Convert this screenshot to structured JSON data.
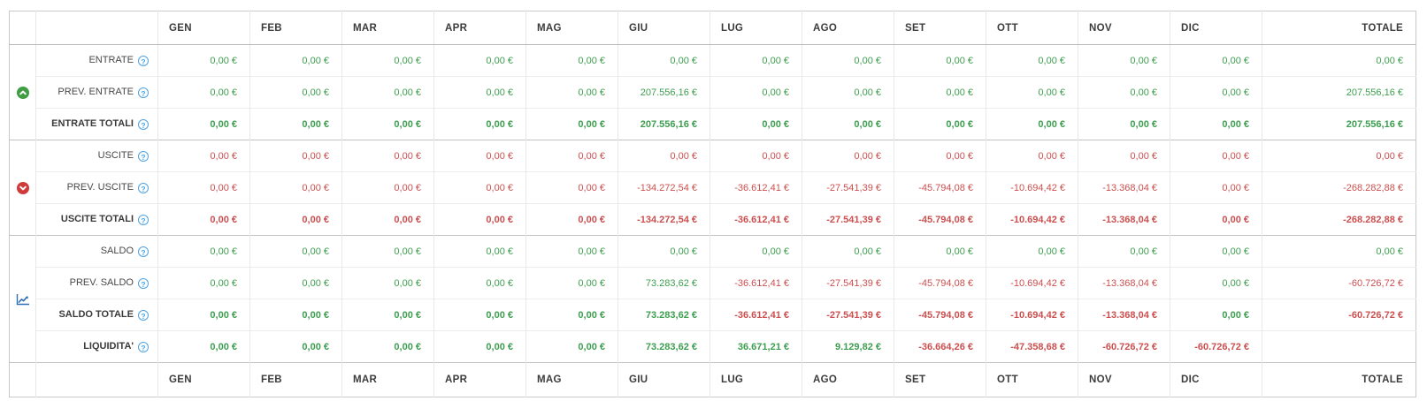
{
  "palette": {
    "positive": "#3d9e4f",
    "negative": "#cc4f4f",
    "help_blue": "#4aa3e8",
    "group_up_green": "#3f9e43",
    "group_down_red": "#cf3b3b",
    "chart_blue": "#2c6fb3"
  },
  "header": {
    "months": [
      "GEN",
      "FEB",
      "MAR",
      "APR",
      "MAG",
      "GIU",
      "LUG",
      "AGO",
      "SET",
      "OTT",
      "NOV",
      "DIC"
    ],
    "total": "TOTALE"
  },
  "footer": {
    "months": [
      "GEN",
      "FEB",
      "MAR",
      "APR",
      "MAG",
      "GIU",
      "LUG",
      "AGO",
      "SET",
      "OTT",
      "NOV",
      "DIC"
    ],
    "total": "TOTALE"
  },
  "help_glyph": "?",
  "groups": [
    {
      "name": "entrate",
      "icon": "arrow-up-circle-icon",
      "rows": [
        {
          "label": "ENTRATE",
          "bold": false,
          "values": [
            {
              "t": "0,00 €",
              "s": "pos"
            },
            {
              "t": "0,00 €",
              "s": "pos"
            },
            {
              "t": "0,00 €",
              "s": "pos"
            },
            {
              "t": "0,00 €",
              "s": "pos"
            },
            {
              "t": "0,00 €",
              "s": "pos"
            },
            {
              "t": "0,00 €",
              "s": "pos"
            },
            {
              "t": "0,00 €",
              "s": "pos"
            },
            {
              "t": "0,00 €",
              "s": "pos"
            },
            {
              "t": "0,00 €",
              "s": "pos"
            },
            {
              "t": "0,00 €",
              "s": "pos"
            },
            {
              "t": "0,00 €",
              "s": "pos"
            },
            {
              "t": "0,00 €",
              "s": "pos"
            },
            {
              "t": "0,00 €",
              "s": "pos"
            }
          ]
        },
        {
          "label": "PREV. ENTRATE",
          "bold": false,
          "values": [
            {
              "t": "0,00 €",
              "s": "pos"
            },
            {
              "t": "0,00 €",
              "s": "pos"
            },
            {
              "t": "0,00 €",
              "s": "pos"
            },
            {
              "t": "0,00 €",
              "s": "pos"
            },
            {
              "t": "0,00 €",
              "s": "pos"
            },
            {
              "t": "207.556,16 €",
              "s": "pos"
            },
            {
              "t": "0,00 €",
              "s": "pos"
            },
            {
              "t": "0,00 €",
              "s": "pos"
            },
            {
              "t": "0,00 €",
              "s": "pos"
            },
            {
              "t": "0,00 €",
              "s": "pos"
            },
            {
              "t": "0,00 €",
              "s": "pos"
            },
            {
              "t": "0,00 €",
              "s": "pos"
            },
            {
              "t": "207.556,16 €",
              "s": "pos"
            }
          ]
        },
        {
          "label": "ENTRATE TOTALI",
          "bold": true,
          "values": [
            {
              "t": "0,00 €",
              "s": "pos"
            },
            {
              "t": "0,00 €",
              "s": "pos"
            },
            {
              "t": "0,00 €",
              "s": "pos"
            },
            {
              "t": "0,00 €",
              "s": "pos"
            },
            {
              "t": "0,00 €",
              "s": "pos"
            },
            {
              "t": "207.556,16 €",
              "s": "pos"
            },
            {
              "t": "0,00 €",
              "s": "pos"
            },
            {
              "t": "0,00 €",
              "s": "pos"
            },
            {
              "t": "0,00 €",
              "s": "pos"
            },
            {
              "t": "0,00 €",
              "s": "pos"
            },
            {
              "t": "0,00 €",
              "s": "pos"
            },
            {
              "t": "0,00 €",
              "s": "pos"
            },
            {
              "t": "207.556,16 €",
              "s": "pos"
            }
          ]
        }
      ]
    },
    {
      "name": "uscite",
      "icon": "arrow-down-circle-icon",
      "rows": [
        {
          "label": "USCITE",
          "bold": false,
          "values": [
            {
              "t": "0,00 €",
              "s": "neg"
            },
            {
              "t": "0,00 €",
              "s": "neg"
            },
            {
              "t": "0,00 €",
              "s": "neg"
            },
            {
              "t": "0,00 €",
              "s": "neg"
            },
            {
              "t": "0,00 €",
              "s": "neg"
            },
            {
              "t": "0,00 €",
              "s": "neg"
            },
            {
              "t": "0,00 €",
              "s": "neg"
            },
            {
              "t": "0,00 €",
              "s": "neg"
            },
            {
              "t": "0,00 €",
              "s": "neg"
            },
            {
              "t": "0,00 €",
              "s": "neg"
            },
            {
              "t": "0,00 €",
              "s": "neg"
            },
            {
              "t": "0,00 €",
              "s": "neg"
            },
            {
              "t": "0,00 €",
              "s": "neg"
            }
          ]
        },
        {
          "label": "PREV. USCITE",
          "bold": false,
          "values": [
            {
              "t": "0,00 €",
              "s": "neg"
            },
            {
              "t": "0,00 €",
              "s": "neg"
            },
            {
              "t": "0,00 €",
              "s": "neg"
            },
            {
              "t": "0,00 €",
              "s": "neg"
            },
            {
              "t": "0,00 €",
              "s": "neg"
            },
            {
              "t": "-134.272,54 €",
              "s": "neg"
            },
            {
              "t": "-36.612,41 €",
              "s": "neg"
            },
            {
              "t": "-27.541,39 €",
              "s": "neg"
            },
            {
              "t": "-45.794,08 €",
              "s": "neg"
            },
            {
              "t": "-10.694,42 €",
              "s": "neg"
            },
            {
              "t": "-13.368,04 €",
              "s": "neg"
            },
            {
              "t": "0,00 €",
              "s": "neg"
            },
            {
              "t": "-268.282,88 €",
              "s": "neg"
            }
          ]
        },
        {
          "label": "USCITE TOTALI",
          "bold": true,
          "values": [
            {
              "t": "0,00 €",
              "s": "neg"
            },
            {
              "t": "0,00 €",
              "s": "neg"
            },
            {
              "t": "0,00 €",
              "s": "neg"
            },
            {
              "t": "0,00 €",
              "s": "neg"
            },
            {
              "t": "0,00 €",
              "s": "neg"
            },
            {
              "t": "-134.272,54 €",
              "s": "neg"
            },
            {
              "t": "-36.612,41 €",
              "s": "neg"
            },
            {
              "t": "-27.541,39 €",
              "s": "neg"
            },
            {
              "t": "-45.794,08 €",
              "s": "neg"
            },
            {
              "t": "-10.694,42 €",
              "s": "neg"
            },
            {
              "t": "-13.368,04 €",
              "s": "neg"
            },
            {
              "t": "0,00 €",
              "s": "neg"
            },
            {
              "t": "-268.282,88 €",
              "s": "neg"
            }
          ]
        }
      ]
    },
    {
      "name": "saldo",
      "icon": "line-chart-icon",
      "rows": [
        {
          "label": "SALDO",
          "bold": false,
          "values": [
            {
              "t": "0,00 €",
              "s": "pos"
            },
            {
              "t": "0,00 €",
              "s": "pos"
            },
            {
              "t": "0,00 €",
              "s": "pos"
            },
            {
              "t": "0,00 €",
              "s": "pos"
            },
            {
              "t": "0,00 €",
              "s": "pos"
            },
            {
              "t": "0,00 €",
              "s": "pos"
            },
            {
              "t": "0,00 €",
              "s": "pos"
            },
            {
              "t": "0,00 €",
              "s": "pos"
            },
            {
              "t": "0,00 €",
              "s": "pos"
            },
            {
              "t": "0,00 €",
              "s": "pos"
            },
            {
              "t": "0,00 €",
              "s": "pos"
            },
            {
              "t": "0,00 €",
              "s": "pos"
            },
            {
              "t": "0,00 €",
              "s": "pos"
            }
          ]
        },
        {
          "label": "PREV. SALDO",
          "bold": false,
          "values": [
            {
              "t": "0,00 €",
              "s": "pos"
            },
            {
              "t": "0,00 €",
              "s": "pos"
            },
            {
              "t": "0,00 €",
              "s": "pos"
            },
            {
              "t": "0,00 €",
              "s": "pos"
            },
            {
              "t": "0,00 €",
              "s": "pos"
            },
            {
              "t": "73.283,62 €",
              "s": "pos"
            },
            {
              "t": "-36.612,41 €",
              "s": "neg"
            },
            {
              "t": "-27.541,39 €",
              "s": "neg"
            },
            {
              "t": "-45.794,08 €",
              "s": "neg"
            },
            {
              "t": "-10.694,42 €",
              "s": "neg"
            },
            {
              "t": "-13.368,04 €",
              "s": "neg"
            },
            {
              "t": "0,00 €",
              "s": "pos"
            },
            {
              "t": "-60.726,72 €",
              "s": "neg"
            }
          ]
        },
        {
          "label": "SALDO TOTALE",
          "bold": true,
          "values": [
            {
              "t": "0,00 €",
              "s": "pos"
            },
            {
              "t": "0,00 €",
              "s": "pos"
            },
            {
              "t": "0,00 €",
              "s": "pos"
            },
            {
              "t": "0,00 €",
              "s": "pos"
            },
            {
              "t": "0,00 €",
              "s": "pos"
            },
            {
              "t": "73.283,62 €",
              "s": "pos"
            },
            {
              "t": "-36.612,41 €",
              "s": "neg"
            },
            {
              "t": "-27.541,39 €",
              "s": "neg"
            },
            {
              "t": "-45.794,08 €",
              "s": "neg"
            },
            {
              "t": "-10.694,42 €",
              "s": "neg"
            },
            {
              "t": "-13.368,04 €",
              "s": "neg"
            },
            {
              "t": "0,00 €",
              "s": "pos"
            },
            {
              "t": "-60.726,72 €",
              "s": "neg"
            }
          ]
        },
        {
          "label": "LIQUIDITA'",
          "bold": true,
          "values": [
            {
              "t": "0,00 €",
              "s": "pos"
            },
            {
              "t": "0,00 €",
              "s": "pos"
            },
            {
              "t": "0,00 €",
              "s": "pos"
            },
            {
              "t": "0,00 €",
              "s": "pos"
            },
            {
              "t": "0,00 €",
              "s": "pos"
            },
            {
              "t": "73.283,62 €",
              "s": "pos"
            },
            {
              "t": "36.671,21 €",
              "s": "pos"
            },
            {
              "t": "9.129,82 €",
              "s": "pos"
            },
            {
              "t": "-36.664,26 €",
              "s": "neg"
            },
            {
              "t": "-47.358,68 €",
              "s": "neg"
            },
            {
              "t": "-60.726,72 €",
              "s": "neg"
            },
            {
              "t": "-60.726,72 €",
              "s": "neg"
            },
            {
              "t": "",
              "s": ""
            }
          ]
        }
      ]
    }
  ]
}
